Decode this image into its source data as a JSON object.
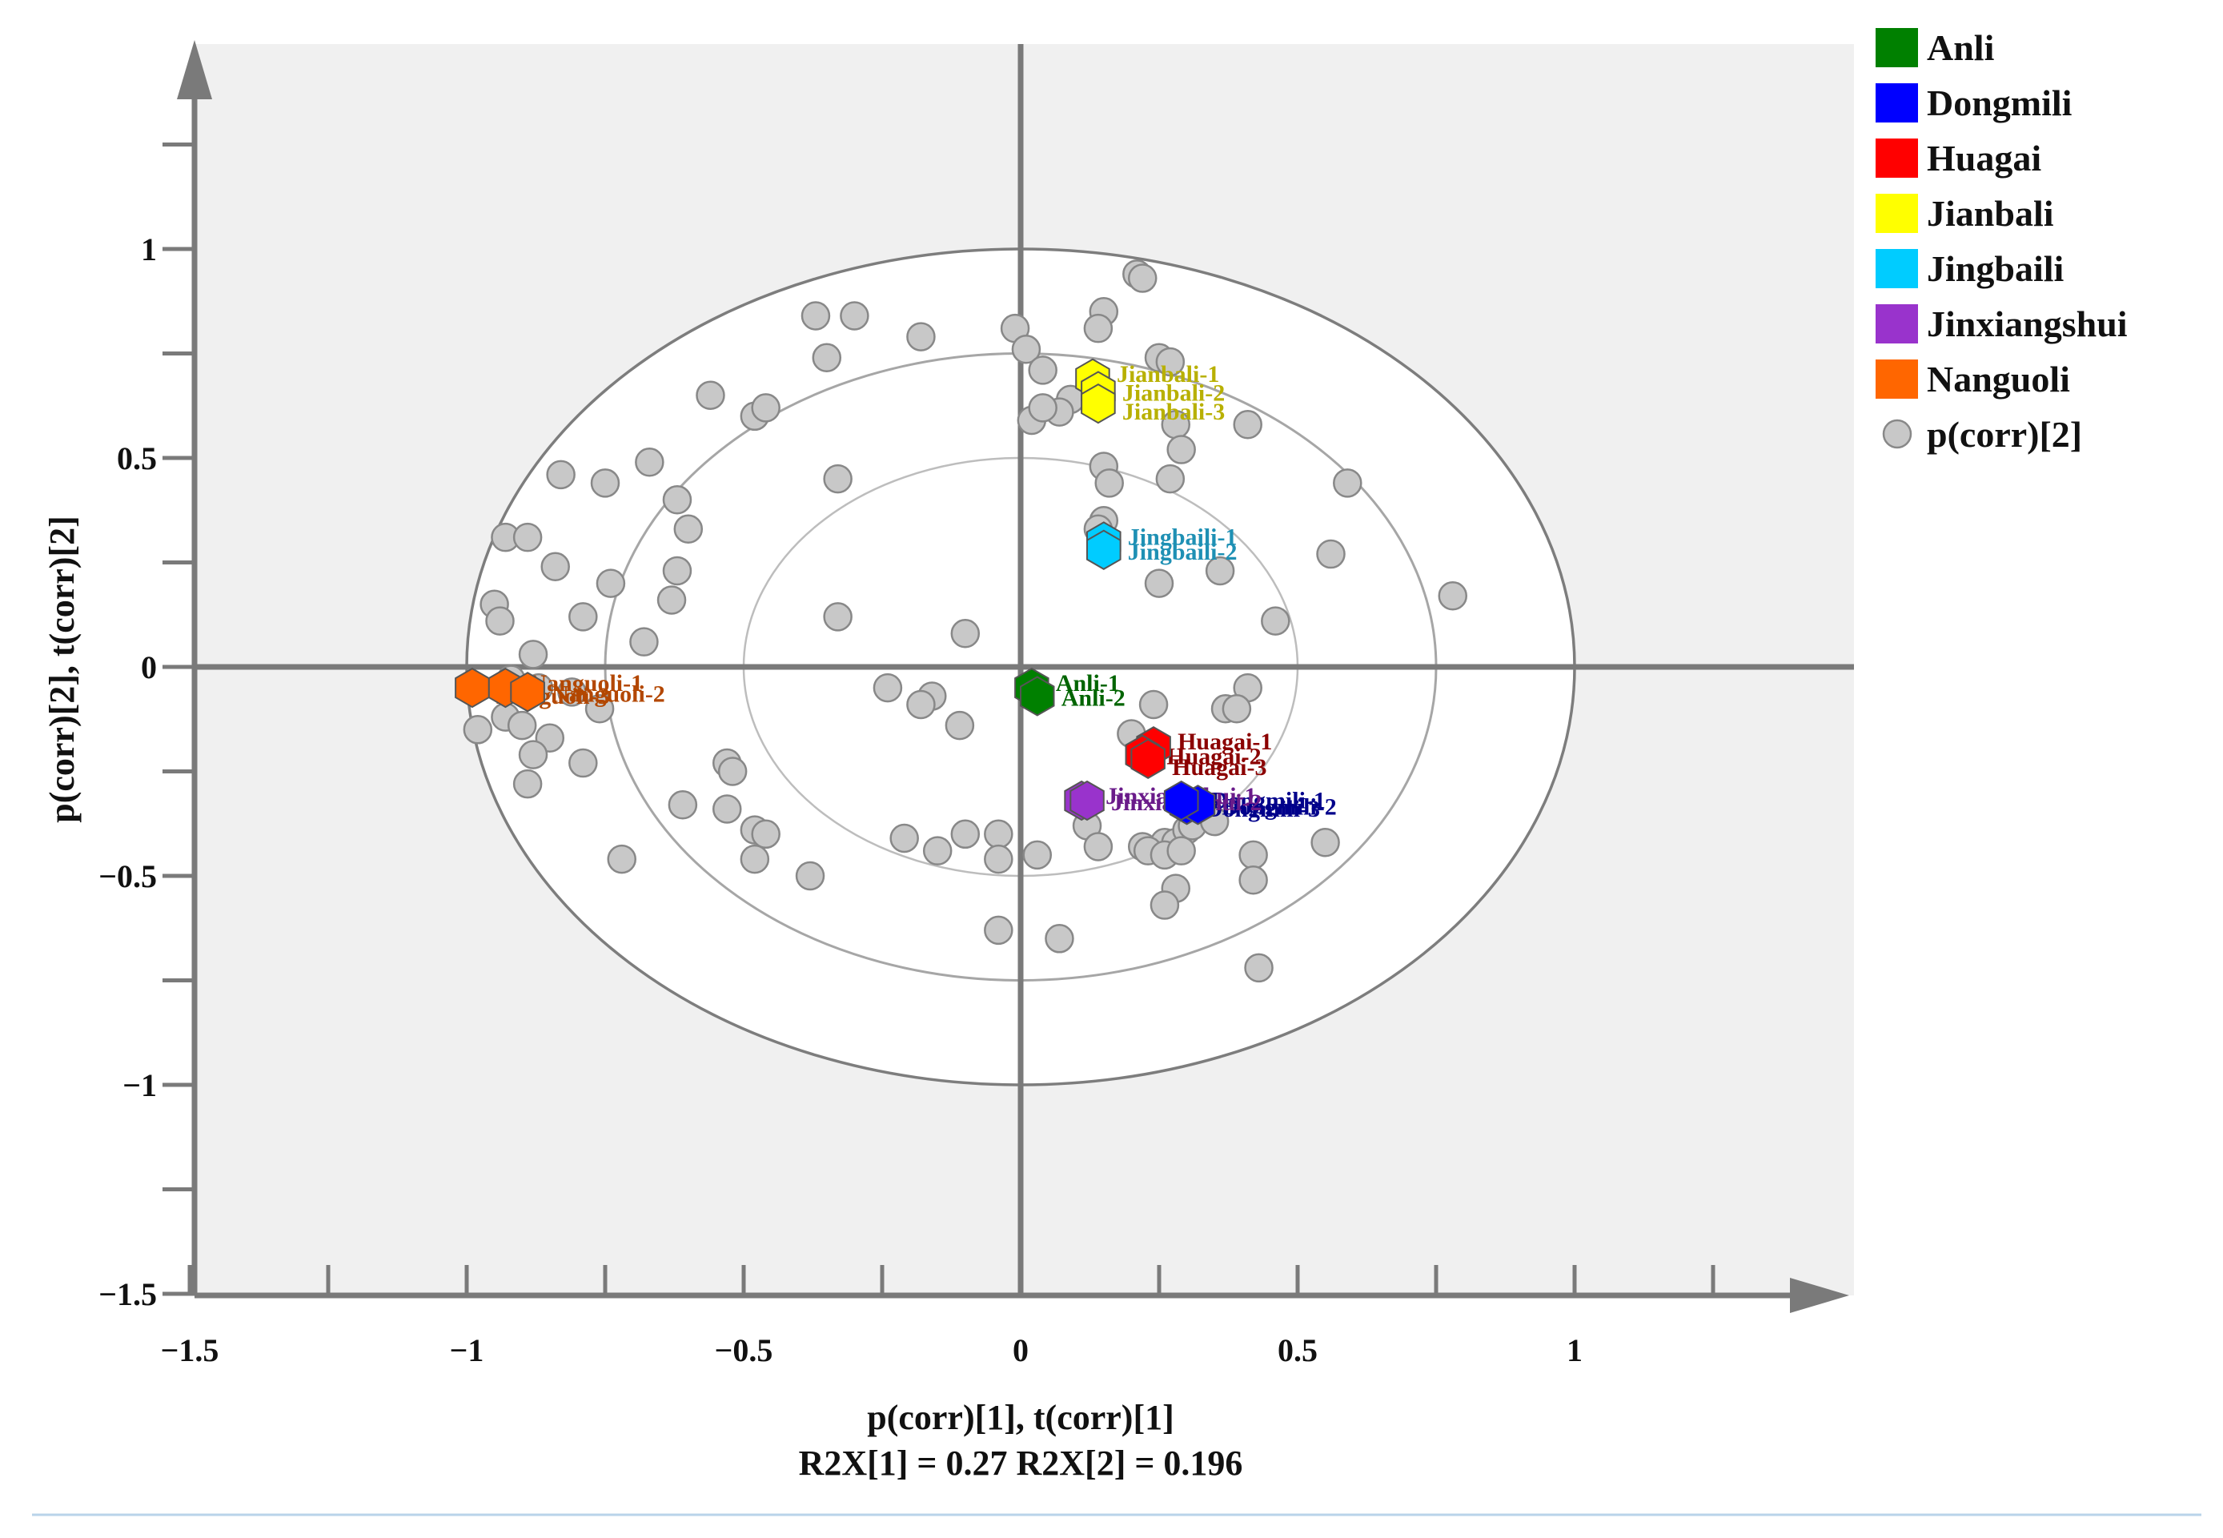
{
  "chart_data": {
    "type": "scatter",
    "title": "",
    "xlabel": "p(corr)[1], t(corr)[1]",
    "ylabel": "p(corr)[2], t(corr)[2]",
    "r2x_label": "R2X[1] = 0.27  R2X[2] = 0.196",
    "xlim": [
      -1.5,
      1.5
    ],
    "ylim": [
      -1.5,
      1.5
    ],
    "x_ticks": [
      -1.5,
      -1,
      -0.5,
      0,
      0.5,
      1
    ],
    "x_tick_labels": [
      "−1.5",
      "−1",
      "−0.5",
      "0",
      "0.5",
      "1"
    ],
    "y_ticks": [
      -1.5,
      -1,
      -0.5,
      0,
      0.5,
      1
    ],
    "y_tick_labels": [
      "−1.5",
      "−1",
      "−0.5",
      "0",
      "0.5",
      "1"
    ],
    "circles": [
      0.5,
      0.75,
      1.0
    ],
    "legend_position": "top-right",
    "groups": [
      {
        "name": "Anli",
        "color": "#008000",
        "label_color": "#006400",
        "points": [
          {
            "label": "Anli-1",
            "x": 0.02,
            "y": -0.05
          },
          {
            "label": "Anli-2",
            "x": 0.03,
            "y": -0.07
          }
        ]
      },
      {
        "name": "Dongmili",
        "color": "#0000ff",
        "label_color": "#00008b",
        "points": [
          {
            "label": "Dongmili-1",
            "x": 0.3,
            "y": -0.33
          },
          {
            "label": "Dongmili-2",
            "x": 0.32,
            "y": -0.33
          },
          {
            "label": "Dongmili-3",
            "x": 0.29,
            "y": -0.32
          }
        ]
      },
      {
        "name": "Huagai",
        "color": "#ff0000",
        "label_color": "#8b0000",
        "points": [
          {
            "label": "Huagai-1",
            "x": 0.24,
            "y": -0.19
          },
          {
            "label": "Huagai-2",
            "x": 0.22,
            "y": -0.21
          },
          {
            "label": "Huagai-3",
            "x": 0.23,
            "y": -0.22
          }
        ]
      },
      {
        "name": "Jianbali",
        "color": "#ffff00",
        "label_color": "#b8b000",
        "points": [
          {
            "label": "Jianbali-1",
            "x": 0.13,
            "y": 0.69
          },
          {
            "label": "Jianbali-2",
            "x": 0.14,
            "y": 0.66
          },
          {
            "label": "Jianbali-3",
            "x": 0.14,
            "y": 0.63
          }
        ]
      },
      {
        "name": "Jingbaili",
        "color": "#00ccff",
        "label_color": "#1e90b4",
        "points": [
          {
            "label": "Jingbaili-1",
            "x": 0.15,
            "y": 0.3
          },
          {
            "label": "Jingbaili-2",
            "x": 0.15,
            "y": 0.28
          }
        ]
      },
      {
        "name": "Jinxiangshui",
        "color": "#9933cc",
        "label_color": "#6a1b8a",
        "points": [
          {
            "label": "Jinxiangshui-1",
            "x": 0.11,
            "y": -0.32
          },
          {
            "label": "Jinxiangshui-2",
            "x": 0.12,
            "y": -0.32
          }
        ]
      },
      {
        "name": "Nanguoli",
        "color": "#ff6600",
        "label_color": "#b34700",
        "points": [
          {
            "label": "Nanguoli-1",
            "x": -0.93,
            "y": -0.05
          },
          {
            "label": "Nanguoli-2",
            "x": -0.89,
            "y": -0.06
          },
          {
            "label": "Nanguoli-3",
            "x": -0.99,
            "y": -0.05
          }
        ]
      }
    ],
    "loadings": {
      "name": "p(corr)[2]",
      "color": "#c8c8c8",
      "points": [
        [
          0.21,
          0.94
        ],
        [
          0.22,
          0.93
        ],
        [
          0.15,
          0.85
        ],
        [
          0.14,
          0.81
        ],
        [
          0.25,
          0.74
        ],
        [
          0.27,
          0.73
        ],
        [
          -0.37,
          0.84
        ],
        [
          -0.3,
          0.84
        ],
        [
          -0.18,
          0.79
        ],
        [
          -0.35,
          0.74
        ],
        [
          -0.01,
          0.81
        ],
        [
          0.01,
          0.76
        ],
        [
          0.04,
          0.71
        ],
        [
          0.09,
          0.64
        ],
        [
          0.07,
          0.61
        ],
        [
          0.02,
          0.59
        ],
        [
          0.04,
          0.62
        ],
        [
          0.28,
          0.58
        ],
        [
          0.29,
          0.52
        ],
        [
          0.41,
          0.58
        ],
        [
          -0.56,
          0.65
        ],
        [
          -0.48,
          0.6
        ],
        [
          -0.46,
          0.62
        ],
        [
          -0.33,
          0.45
        ],
        [
          -0.83,
          0.46
        ],
        [
          -0.75,
          0.44
        ],
        [
          -0.67,
          0.49
        ],
        [
          -0.62,
          0.4
        ],
        [
          -0.6,
          0.33
        ],
        [
          0.15,
          0.48
        ],
        [
          0.16,
          0.44
        ],
        [
          0.27,
          0.45
        ],
        [
          0.59,
          0.44
        ],
        [
          -0.93,
          0.31
        ],
        [
          -0.89,
          0.31
        ],
        [
          -0.84,
          0.24
        ],
        [
          -0.74,
          0.2
        ],
        [
          -0.62,
          0.23
        ],
        [
          -0.63,
          0.16
        ],
        [
          -0.95,
          0.15
        ],
        [
          -0.94,
          0.11
        ],
        [
          -0.79,
          0.12
        ],
        [
          -0.68,
          0.06
        ],
        [
          0.15,
          0.35
        ],
        [
          0.14,
          0.33
        ],
        [
          0.25,
          0.2
        ],
        [
          0.36,
          0.23
        ],
        [
          0.56,
          0.27
        ],
        [
          0.78,
          0.17
        ],
        [
          0.46,
          0.11
        ],
        [
          -0.33,
          0.12
        ],
        [
          -0.1,
          0.08
        ],
        [
          -0.88,
          0.03
        ],
        [
          -0.92,
          -0.03
        ],
        [
          -0.87,
          -0.05
        ],
        [
          -0.81,
          -0.06
        ],
        [
          -0.76,
          -0.1
        ],
        [
          -0.93,
          -0.12
        ],
        [
          -0.9,
          -0.14
        ],
        [
          -0.85,
          -0.17
        ],
        [
          -0.88,
          -0.21
        ],
        [
          -0.98,
          -0.15
        ],
        [
          -0.89,
          -0.28
        ],
        [
          -0.79,
          -0.23
        ],
        [
          -0.24,
          -0.05
        ],
        [
          -0.16,
          -0.07
        ],
        [
          -0.18,
          -0.09
        ],
        [
          -0.11,
          -0.14
        ],
        [
          0.37,
          -0.1
        ],
        [
          0.41,
          -0.05
        ],
        [
          0.24,
          -0.09
        ],
        [
          0.39,
          -0.1
        ],
        [
          0.2,
          -0.16
        ],
        [
          -0.53,
          -0.23
        ],
        [
          -0.52,
          -0.25
        ],
        [
          -0.61,
          -0.33
        ],
        [
          -0.53,
          -0.34
        ],
        [
          -0.48,
          -0.39
        ],
        [
          -0.46,
          -0.4
        ],
        [
          -0.48,
          -0.46
        ],
        [
          -0.38,
          -0.5
        ],
        [
          -0.72,
          -0.46
        ],
        [
          -0.21,
          -0.41
        ],
        [
          -0.15,
          -0.44
        ],
        [
          -0.1,
          -0.4
        ],
        [
          -0.04,
          -0.4
        ],
        [
          -0.04,
          -0.46
        ],
        [
          0.03,
          -0.45
        ],
        [
          0.12,
          -0.38
        ],
        [
          0.14,
          -0.43
        ],
        [
          0.22,
          -0.43
        ],
        [
          0.26,
          -0.42
        ],
        [
          0.28,
          -0.42
        ],
        [
          0.3,
          -0.39
        ],
        [
          0.31,
          -0.38
        ],
        [
          0.35,
          -0.37
        ],
        [
          0.23,
          -0.44
        ],
        [
          0.26,
          -0.45
        ],
        [
          0.29,
          -0.44
        ],
        [
          0.42,
          -0.45
        ],
        [
          0.55,
          -0.42
        ],
        [
          0.28,
          -0.53
        ],
        [
          0.42,
          -0.51
        ],
        [
          0.26,
          -0.57
        ],
        [
          -0.04,
          -0.63
        ],
        [
          0.07,
          -0.65
        ],
        [
          0.43,
          -0.72
        ]
      ]
    }
  }
}
